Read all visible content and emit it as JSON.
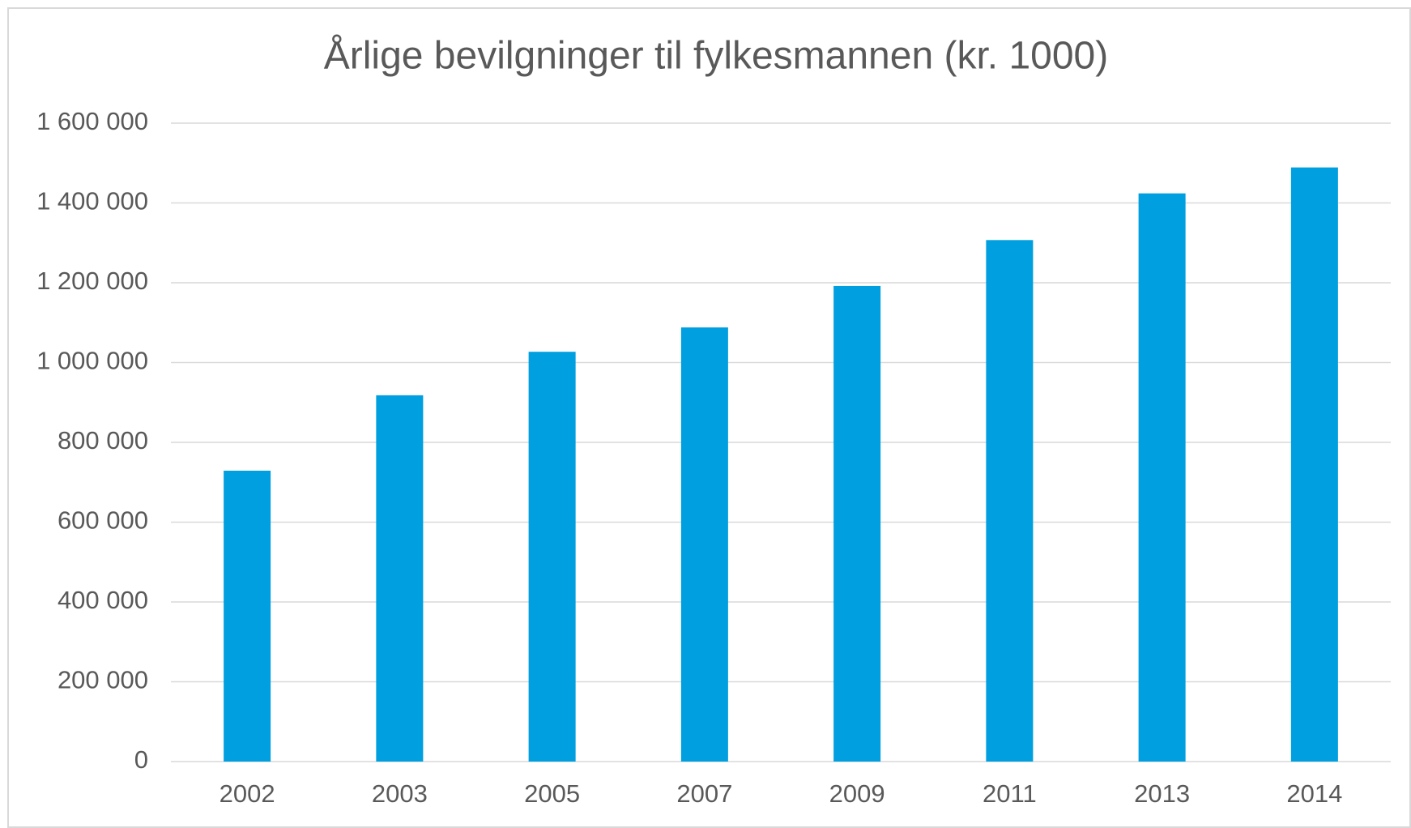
{
  "chart_data": {
    "type": "bar",
    "title": "Årlige bevilgninger til fylkesmannen (kr. 1000)",
    "categories": [
      "2002",
      "2003",
      "2005",
      "2007",
      "2009",
      "2011",
      "2013",
      "2014"
    ],
    "values": [
      729000,
      918000,
      1027000,
      1088000,
      1192000,
      1307000,
      1424000,
      1489000
    ],
    "color": "#009fdf",
    "ylim": [
      0,
      1600000
    ],
    "yticks": [
      0,
      {
        "value": 200000,
        "label": "200 000"
      },
      {
        "value": 400000,
        "label": "400 000"
      },
      {
        "value": 600000,
        "label": "600 000"
      },
      {
        "value": 800000,
        "label": "800 000"
      },
      {
        "value": 1000000,
        "label": "1 000 000"
      },
      {
        "value": 1200000,
        "label": "1 200 000"
      },
      {
        "value": 1400000,
        "label": "1 400 000"
      },
      {
        "value": 1600000,
        "label": "1 600 000"
      }
    ],
    "grid": true
  }
}
